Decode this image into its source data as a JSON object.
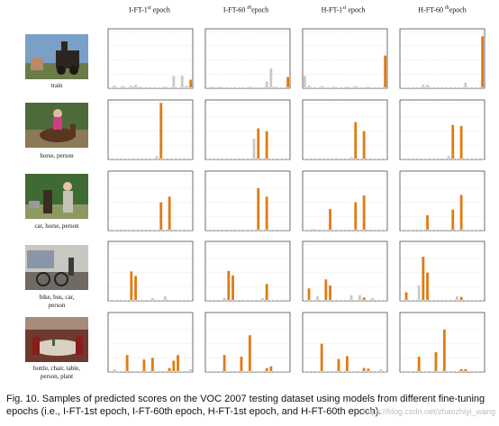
{
  "columns": [
    {
      "pre": "I-FT-1",
      "sup": "st",
      "post": " epoch"
    },
    {
      "pre": "I-FT-60 ",
      "sup": "th",
      "post": "epoch"
    },
    {
      "pre": "H-FT-1",
      "sup": "st",
      "post": " epoch"
    },
    {
      "pre": "H-FT-60 ",
      "sup": "th",
      "post": "epoch"
    }
  ],
  "rows": [
    {
      "label": "train",
      "photo_icon": "train-photo"
    },
    {
      "label": "horse, person",
      "photo_icon": "horse-rider-photo"
    },
    {
      "label": "car, horse, person",
      "photo_icon": "people-horse-photo"
    },
    {
      "label": "bike, bus, car,\nperson",
      "photo_icon": "street-bikes-photo"
    },
    {
      "label": "bottle, chair, table,\nperson, plant",
      "photo_icon": "dining-room-photo"
    }
  ],
  "caption": {
    "line1": "Fig. 10.  Samples of predicted scores on the VOC 2007 testing dataset using models from different fine-tuning",
    "line2": "epochs (i.e., I-FT-1st epoch, I-FT-60th epoch, H-FT-1st epoch, and H-FT-60th epoch)."
  },
  "watermark": "https://blog.csdn.net/zhaozhiyi_wang",
  "colors": {
    "positive": "#e07b13",
    "negative": "#c9c9c9",
    "axis": "#333333",
    "grid": "#d8d8d8"
  },
  "chart_data": {
    "type": "bar",
    "description_axes": "20 VOC classes per panel, predicted score on y from 0 to 1",
    "ylim": [
      0,
      1
    ],
    "num_classes": 20,
    "panels": [
      [
        {
          "pos": {
            "19": 0.15
          },
          "neg": {
            "1": 0.05,
            "3": 0.04,
            "5": 0.05,
            "6": 0.06,
            "7": 0.03,
            "13": 0.03,
            "15": 0.22,
            "17": 0.22,
            "18": 0.05
          }
        },
        {
          "pos": {
            "19": 0.2
          },
          "neg": {
            "1": 0.03,
            "3": 0.03,
            "10": 0.03,
            "14": 0.12,
            "15": 0.35,
            "16": 0.03
          }
        },
        {
          "pos": {
            "19": 0.58
          },
          "neg": {
            "0": 0.22,
            "1": 0.05,
            "4": 0.04,
            "7": 0.03,
            "10": 0.03,
            "12": 0.04,
            "15": 0.03
          }
        },
        {
          "pos": {
            "19": 0.92
          },
          "neg": {
            "5": 0.06,
            "6": 0.06,
            "15": 0.1
          }
        }
      ],
      [
        {
          "pos": {
            "12": 1.0,
            "14": 0.0
          },
          "neg": {
            "11": 0.06
          }
        },
        {
          "pos": {
            "12": 0.55,
            "14": 0.5
          },
          "neg": {
            "11": 0.37
          }
        },
        {
          "pos": {
            "12": 0.66,
            "14": 0.5
          },
          "neg": {
            "11": 0.04
          }
        },
        {
          "pos": {
            "12": 0.61,
            "14": 0.59
          },
          "neg": {
            "11": 0.06
          }
        }
      ],
      [
        {
          "pos": {
            "6": 0.0,
            "12": 0.5,
            "14": 0.6
          },
          "neg": {
            "3": 0.02
          }
        },
        {
          "pos": {
            "6": 0.0,
            "12": 0.75,
            "14": 0.6
          },
          "neg": {}
        },
        {
          "pos": {
            "6": 0.38,
            "12": 0.5,
            "14": 0.62
          },
          "neg": {
            "2": 0.03
          }
        },
        {
          "pos": {
            "6": 0.27,
            "12": 0.37,
            "14": 0.63
          },
          "neg": {}
        }
      ],
      [
        {
          "pos": {
            "1": 0.0,
            "5": 0.52,
            "6": 0.44,
            "14": 0.0
          },
          "neg": {
            "10": 0.05,
            "13": 0.08
          }
        },
        {
          "pos": {
            "1": 0.0,
            "5": 0.53,
            "6": 0.45,
            "14": 0.3
          },
          "neg": {
            "4": 0.05,
            "13": 0.05
          }
        },
        {
          "pos": {
            "1": 0.22,
            "5": 0.38,
            "6": 0.27,
            "14": 0.06
          },
          "neg": {
            "3": 0.08,
            "11": 0.1,
            "13": 0.1,
            "16": 0.05
          }
        },
        {
          "pos": {
            "1": 0.15,
            "5": 0.78,
            "6": 0.5,
            "14": 0.07
          },
          "neg": {
            "4": 0.27,
            "13": 0.08
          }
        }
      ],
      [
        {
          "pos": {
            "4": 0.3,
            "8": 0.22,
            "10": 0.25,
            "14": 0.07,
            "15": 0.2,
            "16": 0.3
          },
          "neg": {
            "1": 0.05,
            "19": 0.05
          }
        },
        {
          "pos": {
            "4": 0.3,
            "8": 0.27,
            "10": 0.65,
            "14": 0.07,
            "15": 0.1
          },
          "neg": {
            "1": 0.02
          }
        },
        {
          "pos": {
            "4": 0.5,
            "8": 0.23,
            "10": 0.28,
            "14": 0.07,
            "15": 0.06
          },
          "neg": {
            "18": 0.05
          }
        },
        {
          "pos": {
            "4": 0.27,
            "8": 0.35,
            "10": 0.75,
            "14": 0.05,
            "15": 0.05
          },
          "neg": {
            "1": 0.02
          }
        }
      ]
    ]
  }
}
